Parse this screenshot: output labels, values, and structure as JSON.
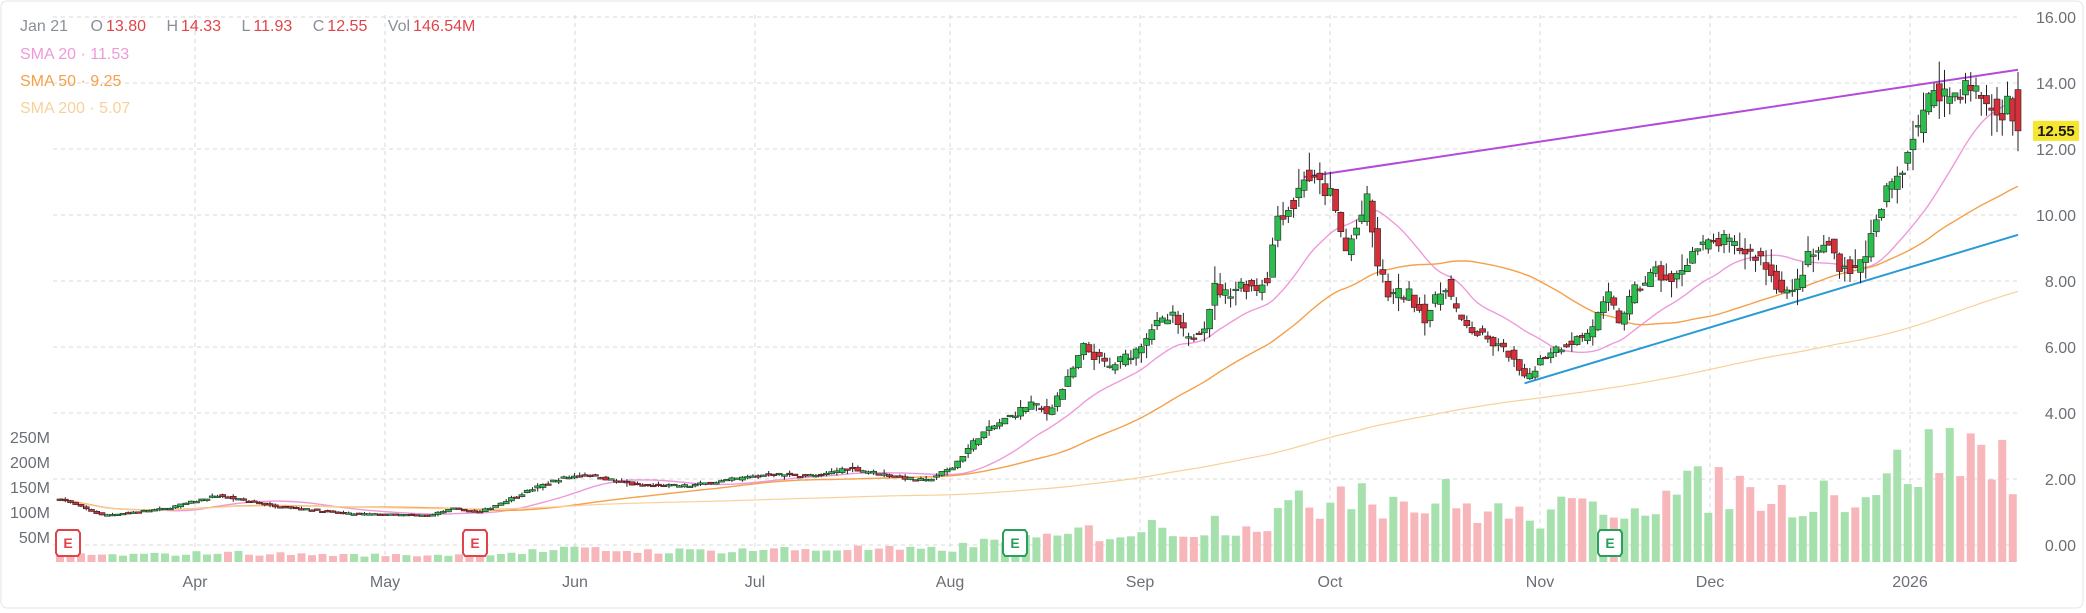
{
  "legend": {
    "date": "Jan 21",
    "open_label": "O",
    "open": "13.80",
    "high_label": "H",
    "high": "14.33",
    "low_label": "L",
    "low": "11.93",
    "close_label": "C",
    "close": "12.55",
    "volume_label": "Vol",
    "volume": "146.54M"
  },
  "sma": [
    {
      "label": "SMA 20",
      "sep": "·",
      "value": "11.53",
      "color": "#ee9ad9"
    },
    {
      "label": "SMA 50",
      "sep": "·",
      "value": "9.25",
      "color": "#f5a04a"
    },
    {
      "label": "SMA 200",
      "sep": "·",
      "value": "5.07",
      "color": "#f8d19a"
    }
  ],
  "price_axis": {
    "ticks": [
      "16.00",
      "14.00",
      "12.00",
      "10.00",
      "8.00",
      "6.00",
      "4.00",
      "2.00",
      "0.00"
    ]
  },
  "volume_axis": {
    "ticks": [
      "250M",
      "200M",
      "150M",
      "100M",
      "50M"
    ]
  },
  "time_axis": {
    "ticks": [
      "Apr",
      "May",
      "Jun",
      "Jul",
      "Aug",
      "Sep",
      "Oct",
      "Nov",
      "Dec",
      "2026"
    ]
  },
  "current_price_tag": "12.55",
  "earnings_markers": [
    {
      "label": "E",
      "color": "#e0444a"
    },
    {
      "label": "E",
      "color": "#e0444a"
    },
    {
      "label": "E",
      "color": "#27a05a"
    },
    {
      "label": "E",
      "color": "#27a05a"
    }
  ],
  "colors": {
    "up": "#2dbd4e",
    "down": "#d5303a",
    "vol_up": "#a6e0ad",
    "vol_down": "#f7b6b9",
    "grid": "#d8d8d8",
    "trend_upper": "#b44ad8",
    "trend_lower": "#2a9ad6",
    "price_tag_bg": "#f6e630"
  },
  "chart_data": {
    "type": "candlestick",
    "title": "",
    "x_axis_months": [
      "Apr",
      "May",
      "Jun",
      "Jul",
      "Aug",
      "Sep",
      "Oct",
      "Nov",
      "Dec",
      "2026"
    ],
    "y_range": [
      0,
      16
    ],
    "volume_range_M": [
      0,
      250
    ],
    "last_bar": {
      "date": "Jan 21",
      "open": 13.8,
      "high": 14.33,
      "low": 11.93,
      "close": 12.55,
      "volume_M": 146.54
    },
    "indicators": [
      {
        "name": "SMA 20",
        "last": 11.53
      },
      {
        "name": "SMA 50",
        "last": 9.25
      },
      {
        "name": "SMA 200",
        "last": 5.07
      }
    ],
    "close_anchors": [
      [
        0,
        1.4
      ],
      [
        8,
        0.9
      ],
      [
        20,
        1.1
      ],
      [
        30,
        1.5
      ],
      [
        40,
        1.2
      ],
      [
        55,
        0.95
      ],
      [
        70,
        0.9
      ],
      [
        75,
        1.1
      ],
      [
        80,
        1.0
      ],
      [
        85,
        1.35
      ],
      [
        90,
        1.7
      ],
      [
        95,
        2.0
      ],
      [
        100,
        2.15
      ],
      [
        110,
        1.8
      ],
      [
        120,
        1.8
      ],
      [
        135,
        2.15
      ],
      [
        145,
        2.1
      ],
      [
        150,
        2.35
      ],
      [
        155,
        2.2
      ],
      [
        160,
        2.05
      ],
      [
        165,
        1.95
      ],
      [
        170,
        2.35
      ],
      [
        175,
        3.3
      ],
      [
        180,
        3.8
      ],
      [
        185,
        4.3
      ],
      [
        188,
        4.0
      ],
      [
        192,
        5.0
      ],
      [
        195,
        6.0
      ],
      [
        198,
        5.6
      ],
      [
        200,
        5.4
      ],
      [
        205,
        5.9
      ],
      [
        208,
        6.6
      ],
      [
        212,
        6.9
      ],
      [
        215,
        6.2
      ],
      [
        218,
        6.7
      ],
      [
        220,
        7.8
      ],
      [
        222,
        7.6
      ],
      [
        225,
        7.9
      ],
      [
        228,
        7.8
      ],
      [
        230,
        8.1
      ],
      [
        232,
        10.0
      ],
      [
        235,
        10.3
      ],
      [
        237,
        11.2
      ],
      [
        240,
        10.9
      ],
      [
        242,
        10.6
      ],
      [
        245,
        8.9
      ],
      [
        247,
        9.6
      ],
      [
        249,
        10.4
      ],
      [
        251,
        8.5
      ],
      [
        253,
        7.6
      ],
      [
        257,
        7.6
      ],
      [
        260,
        6.9
      ],
      [
        264,
        7.9
      ],
      [
        267,
        6.7
      ],
      [
        272,
        6.2
      ],
      [
        276,
        5.8
      ],
      [
        279,
        5.0
      ],
      [
        282,
        5.6
      ],
      [
        284,
        5.9
      ],
      [
        287,
        6.1
      ],
      [
        291,
        6.4
      ],
      [
        295,
        7.5
      ],
      [
        297,
        6.8
      ],
      [
        300,
        7.7
      ],
      [
        304,
        8.3
      ],
      [
        307,
        7.9
      ],
      [
        311,
        8.9
      ],
      [
        314,
        9.1
      ],
      [
        317,
        9.2
      ],
      [
        321,
        8.9
      ],
      [
        324,
        8.7
      ],
      [
        327,
        7.9
      ],
      [
        330,
        7.6
      ],
      [
        333,
        8.7
      ],
      [
        337,
        9.1
      ],
      [
        339,
        8.5
      ],
      [
        342,
        8.3
      ],
      [
        344,
        8.9
      ],
      [
        346,
        9.7
      ],
      [
        348,
        10.7
      ],
      [
        351,
        11.5
      ],
      [
        353,
        12.5
      ],
      [
        355,
        13.0
      ],
      [
        357,
        13.9
      ],
      [
        360,
        13.6
      ],
      [
        363,
        13.9
      ],
      [
        366,
        13.6
      ],
      [
        369,
        13.0
      ],
      [
        371,
        13.4
      ],
      [
        373,
        12.55
      ]
    ]
  }
}
